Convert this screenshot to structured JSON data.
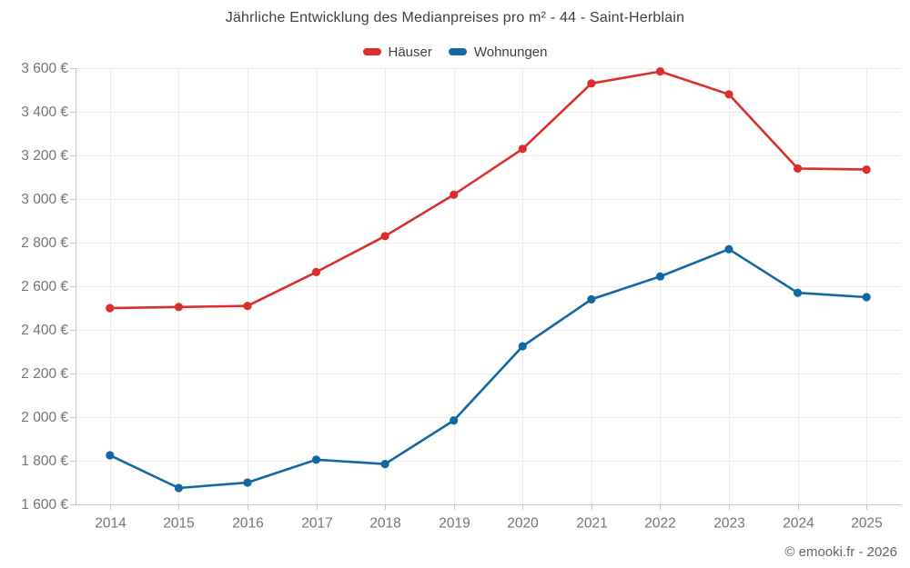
{
  "chart_data": {
    "type": "line",
    "title": "Jährliche Entwicklung des Medianpreises pro m² - 44 - Saint-Herblain",
    "categories": [
      "2014",
      "2015",
      "2016",
      "2017",
      "2018",
      "2019",
      "2020",
      "2021",
      "2022",
      "2023",
      "2024",
      "2025"
    ],
    "series": [
      {
        "key": "haeuser",
        "name": "Häuser",
        "color": "#dc2e2a",
        "values": [
          2500,
          2505,
          2510,
          2665,
          2830,
          3020,
          3230,
          3530,
          3585,
          3480,
          3140,
          3135
        ]
      },
      {
        "key": "wohnungen",
        "name": "Wohnungen",
        "color": "#1069a2",
        "values": [
          1825,
          1675,
          1700,
          1805,
          1785,
          1985,
          2325,
          2540,
          2645,
          2770,
          2570,
          2550
        ]
      }
    ],
    "ylim": [
      1600,
      3600
    ],
    "y_tick_step": 200,
    "y_tick_format": "{value} €",
    "xlabel": "",
    "ylabel": "",
    "grid": true,
    "legend_position": "top"
  },
  "footer": {
    "text": "© emooki.fr - 2026"
  },
  "colors": {
    "grid": "#ececec",
    "axis": "#c6c6c6",
    "tick_label": "#757575",
    "title_text": "#3f3f3f",
    "footer_text": "#666666",
    "background": "#ffffff"
  }
}
